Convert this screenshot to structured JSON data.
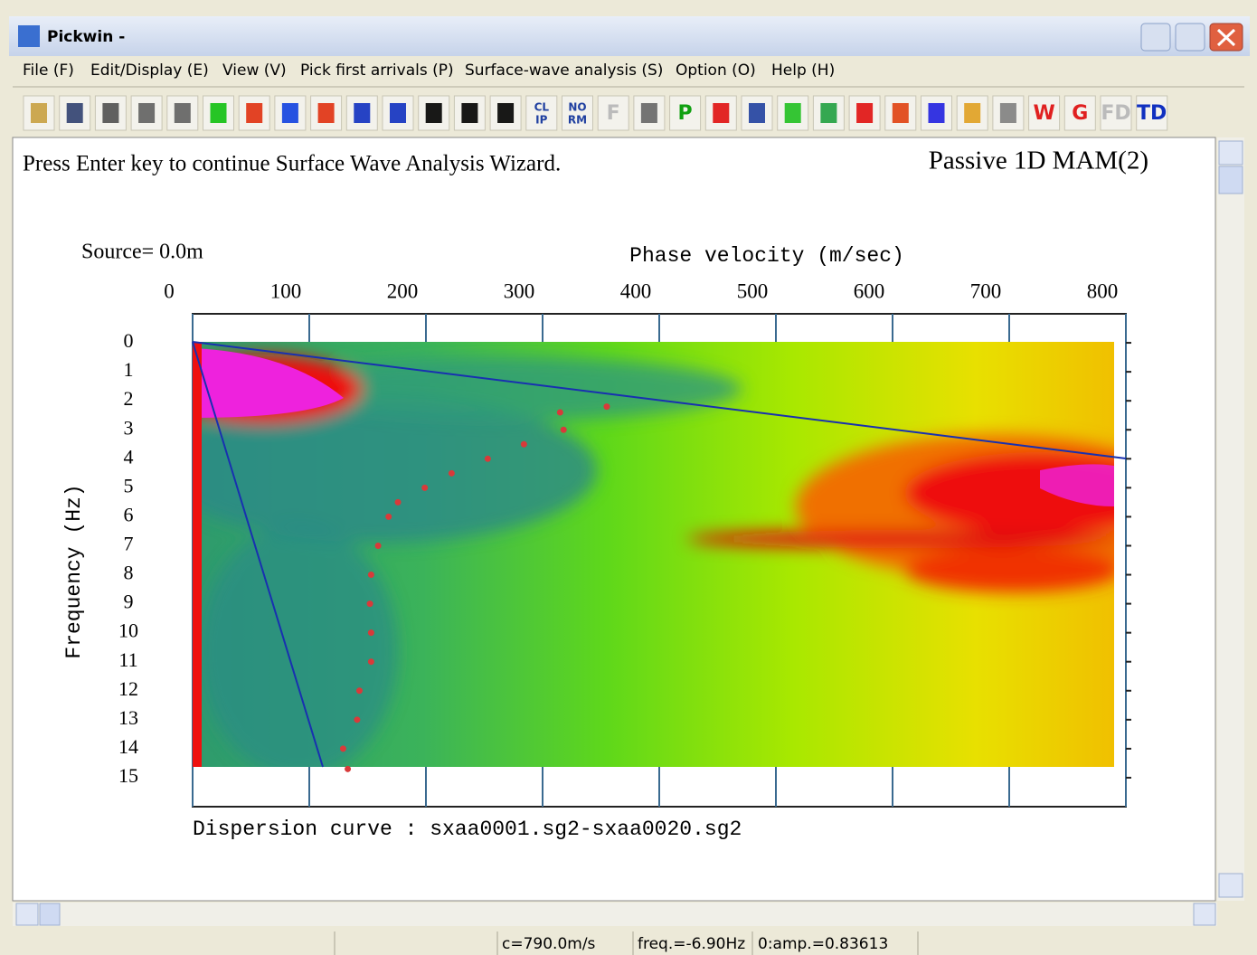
{
  "window": {
    "title": "Pickwin -"
  },
  "menu": [
    "File (F)",
    "Edit/Display (E)",
    "View (V)",
    "Pick first arrivals (P)",
    "Surface-wave analysis (S)",
    "Option (O)",
    "Help (H)"
  ],
  "toolbar": {
    "labels": [
      "CL",
      "IP",
      "NO",
      "RM",
      "F",
      "P",
      "W",
      "G",
      "FD",
      "TD"
    ]
  },
  "content": {
    "prompt": "Press Enter key to continue Surface Wave Analysis Wizard.",
    "mode": "Passive 1D MAM(2)",
    "source": "Source= 0.0m"
  },
  "chart_data": {
    "type": "scatter",
    "x_label": "Phase velocity (m/sec)",
    "y_label": "Frequency (Hz)",
    "caption": "Dispersion curve : sxaa0001.sg2-sxaa0020.sg2",
    "xlim": [
      0,
      800
    ],
    "ylim": [
      -1,
      16
    ],
    "y_inverted": true,
    "xticks": [
      0,
      100,
      200,
      300,
      400,
      500,
      600,
      700,
      800
    ],
    "yticks": [
      0,
      1,
      2,
      3,
      4,
      5,
      6,
      7,
      8,
      9,
      10,
      11,
      12,
      13,
      14,
      15
    ],
    "x": [
      355,
      315,
      318,
      284,
      253,
      222,
      199,
      176,
      168,
      159,
      153,
      152,
      153,
      153,
      143,
      141,
      129,
      133
    ],
    "values": [
      2.2,
      2.4,
      3,
      3.5,
      4,
      4.5,
      5,
      5.5,
      6,
      7,
      8,
      9,
      10,
      11,
      12,
      13,
      14,
      14.7
    ],
    "color": "#d83a3a"
  },
  "status": {
    "fields": [
      "c=790.0m/s",
      "freq.=-6.90Hz",
      "0:amp.=0.83613"
    ]
  }
}
